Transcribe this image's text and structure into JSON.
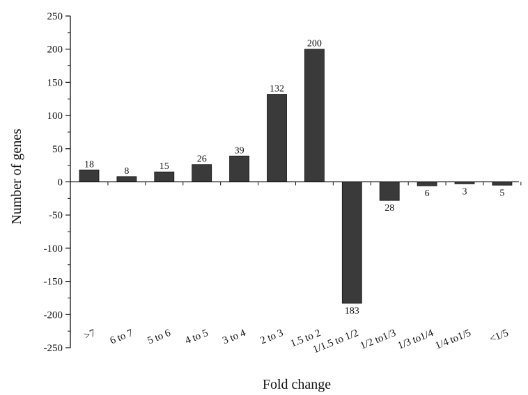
{
  "chart_data": {
    "type": "bar",
    "xlabel": "Fold change",
    "ylabel": "Number of genes",
    "ylim": [
      -250,
      250
    ],
    "yticks": [
      -250,
      -200,
      -150,
      -100,
      -50,
      0,
      50,
      100,
      150,
      200,
      250
    ],
    "categories": [
      ">7",
      "6 to 7",
      "5 to 6",
      "4 to 5",
      "3 to 4",
      "2 to 3",
      "1.5 to 2",
      "1/1.5 to 1/2",
      "1/2 to1/3",
      "1/3 to1/4",
      "1/4 to1/5",
      "<1/5"
    ],
    "values": [
      18,
      8,
      15,
      26,
      39,
      132,
      200,
      -183,
      -28,
      -6,
      -3,
      -5
    ],
    "data_labels": [
      "18",
      "8",
      "15",
      "26",
      "39",
      "132",
      "200",
      "183",
      "28",
      "6",
      "3",
      "5"
    ],
    "bar_color": "#3a3a3a",
    "grid": false
  }
}
